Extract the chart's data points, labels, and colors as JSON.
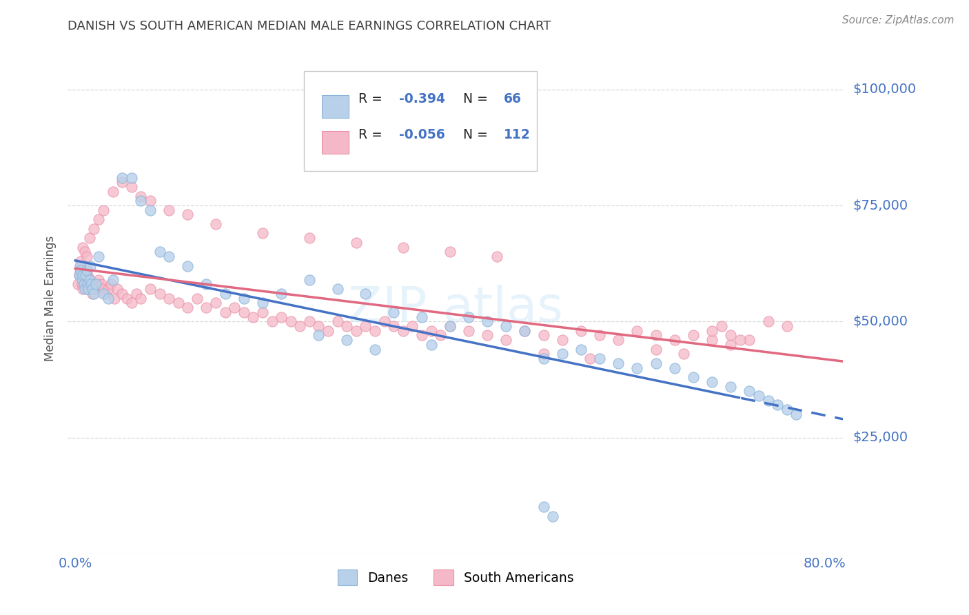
{
  "title": "DANISH VS SOUTH AMERICAN MEDIAN MALE EARNINGS CORRELATION CHART",
  "source": "Source: ZipAtlas.com",
  "ylabel": "Median Male Earnings",
  "r_danes": -0.394,
  "n_danes": 66,
  "r_sa": -0.056,
  "n_sa": 112,
  "color_danes_fill": "#b8d0ea",
  "color_danes_edge": "#8ab4d8",
  "color_sa_fill": "#f5b8c8",
  "color_sa_edge": "#e890a8",
  "color_trendline_danes": "#4472c4",
  "color_trendline_sa": "#e06880",
  "color_axis": "#4472c4",
  "color_title": "#404040",
  "color_source": "#888888",
  "color_grid": "#d8d8d8",
  "yticks": [
    0,
    25000,
    50000,
    75000,
    100000
  ],
  "ytick_labels": [
    "",
    "$25,000",
    "$50,000",
    "$75,000",
    "$100,000"
  ],
  "xmin": 0.0,
  "xmax": 0.8,
  "ymin": 0,
  "ymax": 110000,
  "danes_x": [
    0.004,
    0.005,
    0.006,
    0.007,
    0.008,
    0.009,
    0.01,
    0.011,
    0.012,
    0.013,
    0.014,
    0.015,
    0.016,
    0.017,
    0.018,
    0.02,
    0.022,
    0.025,
    0.03,
    0.035,
    0.04,
    0.05,
    0.06,
    0.07,
    0.08,
    0.09,
    0.1,
    0.12,
    0.14,
    0.16,
    0.18,
    0.2,
    0.22,
    0.25,
    0.28,
    0.31,
    0.34,
    0.37,
    0.4,
    0.42,
    0.44,
    0.46,
    0.48,
    0.5,
    0.52,
    0.54,
    0.56,
    0.58,
    0.6,
    0.62,
    0.64,
    0.66,
    0.68,
    0.7,
    0.72,
    0.73,
    0.74,
    0.75,
    0.76,
    0.77,
    0.5,
    0.51,
    0.32,
    0.29,
    0.26,
    0.38
  ],
  "danes_y": [
    60000,
    62000,
    61000,
    59000,
    60000,
    58000,
    57000,
    60000,
    61000,
    58000,
    57000,
    59000,
    62000,
    58000,
    57000,
    56000,
    58000,
    64000,
    56000,
    55000,
    59000,
    81000,
    81000,
    76000,
    74000,
    65000,
    64000,
    62000,
    58000,
    56000,
    55000,
    54000,
    56000,
    59000,
    57000,
    56000,
    52000,
    51000,
    49000,
    51000,
    50000,
    49000,
    48000,
    42000,
    43000,
    44000,
    42000,
    41000,
    40000,
    41000,
    40000,
    38000,
    37000,
    36000,
    35000,
    34000,
    33000,
    32000,
    31000,
    30000,
    10000,
    8000,
    44000,
    46000,
    47000,
    45000
  ],
  "sa_x": [
    0.003,
    0.004,
    0.005,
    0.006,
    0.007,
    0.008,
    0.009,
    0.01,
    0.011,
    0.012,
    0.013,
    0.014,
    0.015,
    0.016,
    0.017,
    0.018,
    0.02,
    0.022,
    0.025,
    0.028,
    0.03,
    0.032,
    0.035,
    0.038,
    0.042,
    0.045,
    0.05,
    0.055,
    0.06,
    0.065,
    0.07,
    0.08,
    0.09,
    0.1,
    0.11,
    0.12,
    0.13,
    0.14,
    0.15,
    0.16,
    0.17,
    0.18,
    0.19,
    0.2,
    0.21,
    0.22,
    0.23,
    0.24,
    0.25,
    0.26,
    0.27,
    0.28,
    0.29,
    0.3,
    0.31,
    0.32,
    0.33,
    0.34,
    0.35,
    0.36,
    0.37,
    0.38,
    0.39,
    0.4,
    0.42,
    0.44,
    0.46,
    0.48,
    0.5,
    0.52,
    0.54,
    0.56,
    0.58,
    0.6,
    0.62,
    0.64,
    0.66,
    0.68,
    0.7,
    0.72,
    0.74,
    0.76,
    0.006,
    0.008,
    0.01,
    0.012,
    0.015,
    0.02,
    0.025,
    0.03,
    0.04,
    0.05,
    0.06,
    0.07,
    0.08,
    0.1,
    0.12,
    0.15,
    0.2,
    0.25,
    0.3,
    0.35,
    0.4,
    0.45,
    0.5,
    0.55,
    0.62,
    0.65,
    0.68,
    0.69,
    0.7,
    0.71
  ],
  "sa_y": [
    58000,
    60000,
    61000,
    60000,
    58000,
    57000,
    60000,
    59000,
    58000,
    57000,
    60000,
    58000,
    57000,
    59000,
    57000,
    56000,
    57000,
    58000,
    59000,
    58000,
    57000,
    56000,
    57000,
    58000,
    55000,
    57000,
    56000,
    55000,
    54000,
    56000,
    55000,
    57000,
    56000,
    55000,
    54000,
    53000,
    55000,
    53000,
    54000,
    52000,
    53000,
    52000,
    51000,
    52000,
    50000,
    51000,
    50000,
    49000,
    50000,
    49000,
    48000,
    50000,
    49000,
    48000,
    49000,
    48000,
    50000,
    49000,
    48000,
    49000,
    47000,
    48000,
    47000,
    49000,
    48000,
    47000,
    46000,
    48000,
    47000,
    46000,
    48000,
    47000,
    46000,
    48000,
    47000,
    46000,
    47000,
    46000,
    45000,
    46000,
    50000,
    49000,
    63000,
    66000,
    65000,
    64000,
    68000,
    70000,
    72000,
    74000,
    78000,
    80000,
    79000,
    77000,
    76000,
    74000,
    73000,
    71000,
    69000,
    68000,
    67000,
    66000,
    65000,
    64000,
    43000,
    42000,
    44000,
    43000,
    48000,
    49000,
    47000,
    46000
  ]
}
